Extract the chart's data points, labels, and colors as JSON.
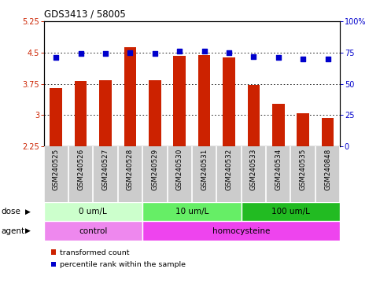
{
  "title": "GDS3413 / 58005",
  "samples": [
    "GSM240525",
    "GSM240526",
    "GSM240527",
    "GSM240528",
    "GSM240529",
    "GSM240530",
    "GSM240531",
    "GSM240532",
    "GSM240533",
    "GSM240534",
    "GSM240535",
    "GSM240848"
  ],
  "bar_values": [
    3.65,
    3.82,
    3.84,
    4.62,
    3.83,
    4.42,
    4.44,
    4.38,
    3.72,
    3.28,
    3.04,
    2.93
  ],
  "dot_values": [
    71,
    74,
    74,
    75,
    74,
    76,
    76,
    75,
    72,
    71,
    70,
    70
  ],
  "bar_color": "#cc2200",
  "dot_color": "#0000cc",
  "ylim_left": [
    2.25,
    5.25
  ],
  "ylim_right": [
    0,
    100
  ],
  "yticks_left": [
    2.25,
    3.0,
    3.75,
    4.5,
    5.25
  ],
  "yticks_right": [
    0,
    25,
    50,
    75,
    100
  ],
  "ytick_labels_left": [
    "2.25",
    "3",
    "3.75",
    "4.5",
    "5.25"
  ],
  "ytick_labels_right": [
    "0",
    "25",
    "50",
    "75",
    "100%"
  ],
  "grid_values": [
    3.0,
    3.75,
    4.5
  ],
  "dose_groups": [
    {
      "label": "0 um/L",
      "start": 0,
      "end": 4,
      "color": "#ccffcc"
    },
    {
      "label": "10 um/L",
      "start": 4,
      "end": 8,
      "color": "#66ee66"
    },
    {
      "label": "100 um/L",
      "start": 8,
      "end": 12,
      "color": "#22bb22"
    }
  ],
  "agent_groups": [
    {
      "label": "control",
      "start": 0,
      "end": 4,
      "color": "#ee88ee"
    },
    {
      "label": "homocysteine",
      "start": 4,
      "end": 12,
      "color": "#ee44ee"
    }
  ],
  "dose_label": "dose",
  "agent_label": "agent",
  "legend_bar_label": "transformed count",
  "legend_dot_label": "percentile rank within the sample",
  "bg_color": "#ffffff",
  "plot_bg_color": "#ffffff",
  "sample_area_color": "#cccccc",
  "bar_baseline": 2.25
}
